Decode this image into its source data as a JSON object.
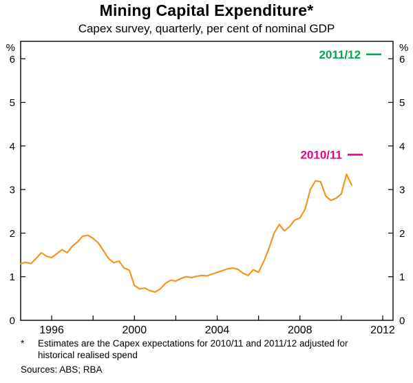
{
  "header": {
    "title": "Mining Capital Expenditure*",
    "subtitle": "Capex survey, quarterly, per cent of nominal GDP"
  },
  "footnote": {
    "marker": "*",
    "text": "Estimates are the Capex expectations for 2010/11 and 2011/12 adjusted for historical realised spend"
  },
  "sources": "Sources: ABS; RBA",
  "chart_data": {
    "type": "line",
    "title": "Mining Capital Expenditure*",
    "subtitle": "Capex survey, quarterly, per cent of nominal GDP",
    "ylabel_left": "%",
    "ylabel_right": "%",
    "xlim": [
      1994.5,
      2012.5
    ],
    "ylim": [
      0,
      6.4
    ],
    "yticks": [
      0,
      1,
      2,
      3,
      4,
      5,
      6
    ],
    "xticks": [
      1996,
      2000,
      2004,
      2008,
      2012
    ],
    "xticks_minor_step": 2,
    "grid": false,
    "x": [
      1994.5,
      1994.75,
      1995.0,
      1995.25,
      1995.5,
      1995.75,
      1996.0,
      1996.25,
      1996.5,
      1996.75,
      1997.0,
      1997.25,
      1997.5,
      1997.75,
      1998.0,
      1998.25,
      1998.5,
      1998.75,
      1999.0,
      1999.25,
      1999.5,
      1999.75,
      2000.0,
      2000.25,
      2000.5,
      2000.75,
      2001.0,
      2001.25,
      2001.5,
      2001.75,
      2002.0,
      2002.25,
      2002.5,
      2002.75,
      2003.0,
      2003.25,
      2003.5,
      2003.75,
      2004.0,
      2004.25,
      2004.5,
      2004.75,
      2005.0,
      2005.25,
      2005.5,
      2005.75,
      2006.0,
      2006.25,
      2006.5,
      2006.75,
      2007.0,
      2007.25,
      2007.5,
      2007.75,
      2008.0,
      2008.25,
      2008.5,
      2008.75,
      2009.0,
      2009.25,
      2009.5,
      2009.75,
      2010.0,
      2010.25,
      2010.5
    ],
    "series": [
      {
        "name": "Mining capex, per cent of nominal GDP",
        "color": "#F7941E",
        "values": [
          1.3,
          1.33,
          1.3,
          1.42,
          1.55,
          1.47,
          1.44,
          1.53,
          1.62,
          1.55,
          1.7,
          1.8,
          1.93,
          1.95,
          1.88,
          1.78,
          1.6,
          1.42,
          1.32,
          1.36,
          1.2,
          1.15,
          0.8,
          0.72,
          0.74,
          0.68,
          0.65,
          0.72,
          0.85,
          0.92,
          0.9,
          0.96,
          1.0,
          0.98,
          1.01,
          1.03,
          1.02,
          1.06,
          1.1,
          1.14,
          1.18,
          1.2,
          1.17,
          1.08,
          1.03,
          1.16,
          1.1,
          1.35,
          1.65,
          2.0,
          2.2,
          2.05,
          2.15,
          2.3,
          2.35,
          2.55,
          3.0,
          3.2,
          3.18,
          2.85,
          2.75,
          2.8,
          2.9,
          3.35,
          3.1
        ]
      }
    ],
    "estimates": [
      {
        "label": "2011/12",
        "value": 6.1,
        "x_center": 2011.57,
        "color": "#00A651"
      },
      {
        "label": "2010/11",
        "value": 3.8,
        "x_center": 2010.67,
        "color": "#EC008C"
      }
    ]
  }
}
